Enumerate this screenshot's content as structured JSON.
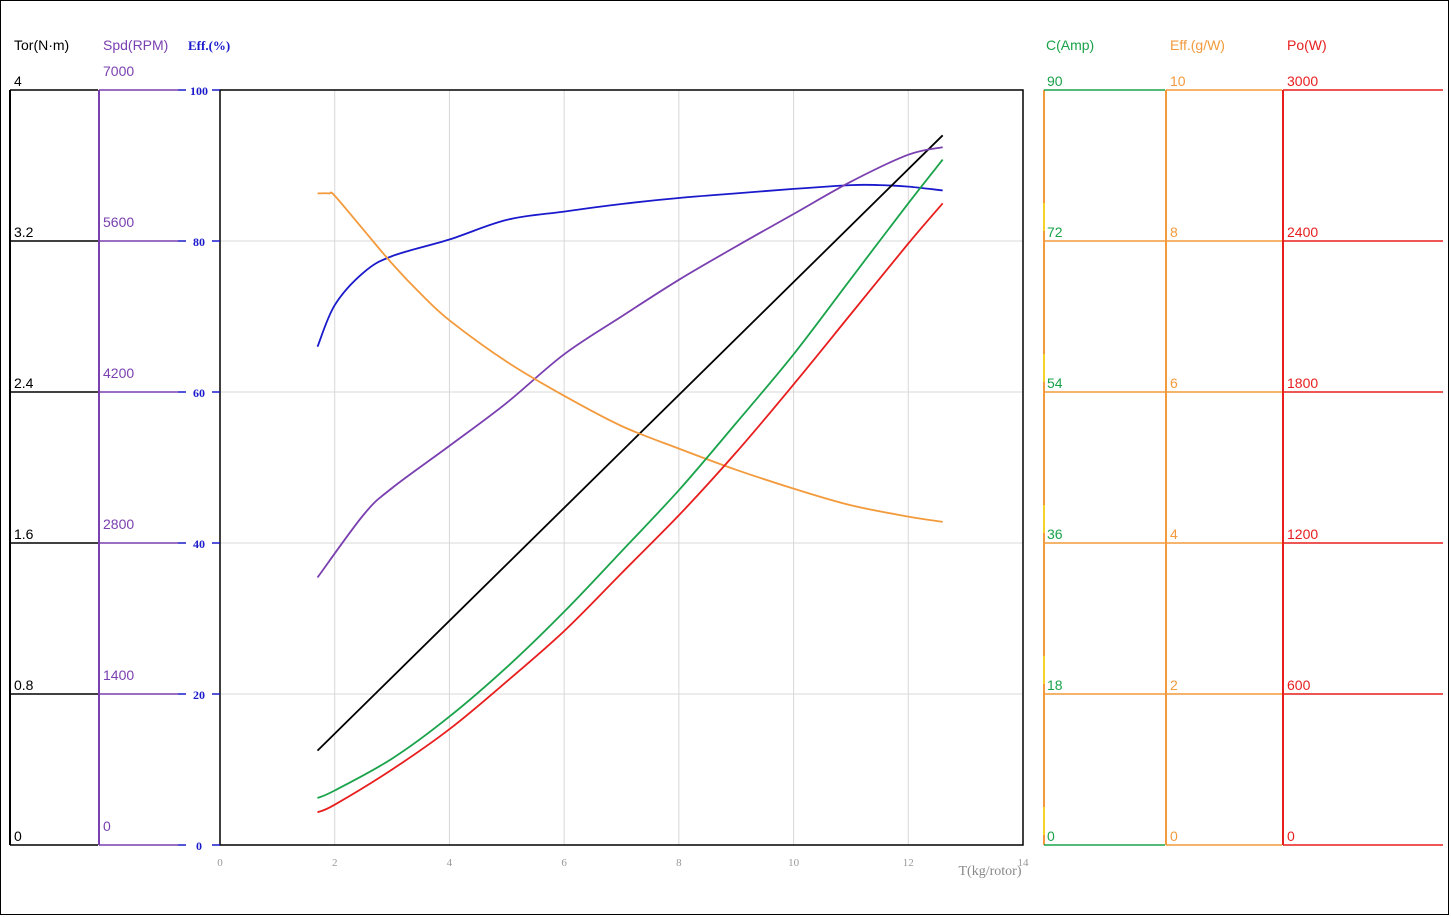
{
  "chart_data": {
    "type": "line",
    "xlabel": "T(kg/rotor)",
    "xlim": [
      0,
      14
    ],
    "x_ticks": [
      "0",
      "2",
      "4",
      "6",
      "8",
      "10",
      "12",
      "14"
    ],
    "grid": true,
    "axes": [
      {
        "id": "tor",
        "title": "Tor(N·m)",
        "color": "#000000",
        "min": 0,
        "max": 4,
        "ticks": [
          "0",
          "0.8",
          "1.6",
          "2.4",
          "3.2",
          "4"
        ]
      },
      {
        "id": "spd",
        "title": "Spd(RPM)",
        "color": "#7a3fb0",
        "min": 0,
        "max": 7000,
        "ticks": [
          "0",
          "1400",
          "2800",
          "4200",
          "5600",
          "7000"
        ]
      },
      {
        "id": "eff",
        "title": "Eff.(%)",
        "color": "#1a1acc",
        "min": 0,
        "max": 100,
        "ticks": [
          "0",
          "20",
          "40",
          "60",
          "80",
          "100"
        ]
      },
      {
        "id": "amp",
        "title": "C(Amp)",
        "color": "#1aa34a",
        "min": 0,
        "max": 90,
        "ticks": [
          "0",
          "18",
          "36",
          "54",
          "72",
          "90"
        ]
      },
      {
        "id": "gw",
        "title": "Eff.(g/W)",
        "color": "#f39a3c",
        "min": 0,
        "max": 10,
        "ticks": [
          "0",
          "2",
          "4",
          "6",
          "8",
          "10"
        ]
      },
      {
        "id": "po",
        "title": "Po(W)",
        "color": "#e81e1e",
        "min": 0,
        "max": 3000,
        "ticks": [
          "0",
          "600",
          "1200",
          "1800",
          "2400",
          "3000"
        ]
      }
    ],
    "series": [
      {
        "axis": "eff",
        "color": "#1a1acc",
        "x": [
          1.7,
          2.0,
          2.5,
          3.0,
          4.0,
          5.0,
          6.0,
          7.0,
          8.0,
          9.0,
          10.0,
          11.0,
          11.5,
          12.0,
          12.6
        ],
        "y": [
          66,
          71.5,
          75.8,
          78,
          80.2,
          82.8,
          83.9,
          84.9,
          85.7,
          86.3,
          86.9,
          87.4,
          87.4,
          87.2,
          86.7
        ]
      },
      {
        "axis": "tor",
        "color": "#000000",
        "x": [
          1.7,
          12.6
        ],
        "y": [
          0.5,
          3.76
        ]
      },
      {
        "axis": "spd",
        "color": "#7a3fb0",
        "x": [
          1.7,
          2.5,
          3.0,
          4.0,
          5.0,
          6.0,
          7.0,
          8.0,
          9.0,
          10.0,
          11.0,
          12.0,
          12.6
        ],
        "y": [
          2480,
          3060,
          3310,
          3700,
          4100,
          4550,
          4900,
          5240,
          5550,
          5850,
          6150,
          6400,
          6470
        ]
      },
      {
        "axis": "gw",
        "color": "#f39a3c",
        "x": [
          1.7,
          1.9,
          2.0,
          2.5,
          3.0,
          3.5,
          4.0,
          5.0,
          6.0,
          7.0,
          8.0,
          9.0,
          10.0,
          11.0,
          12.0,
          12.6
        ],
        "y": [
          8.63,
          8.63,
          8.6,
          8.15,
          7.7,
          7.3,
          6.95,
          6.4,
          5.95,
          5.55,
          5.25,
          4.97,
          4.72,
          4.5,
          4.35,
          4.28
        ]
      },
      {
        "axis": "amp",
        "color": "#1aa34a",
        "x": [
          1.7,
          2.0,
          3.0,
          4.0,
          5.0,
          6.0,
          7.0,
          8.0,
          9.0,
          10.0,
          11.0,
          12.0,
          12.6
        ],
        "y": [
          5.6,
          6.5,
          10.3,
          15.3,
          21.2,
          27.8,
          35.0,
          42.3,
          50.3,
          58.5,
          67.5,
          76.5,
          81.7
        ]
      },
      {
        "axis": "po",
        "color": "#e81e1e",
        "x": [
          1.7,
          2.0,
          3.0,
          4.0,
          5.0,
          6.0,
          7.0,
          8.0,
          9.0,
          10.0,
          11.0,
          12.0,
          12.6
        ],
        "y": [
          130,
          160,
          300,
          460,
          650,
          850,
          1080,
          1310,
          1560,
          1830,
          2110,
          2390,
          2550
        ]
      }
    ]
  }
}
